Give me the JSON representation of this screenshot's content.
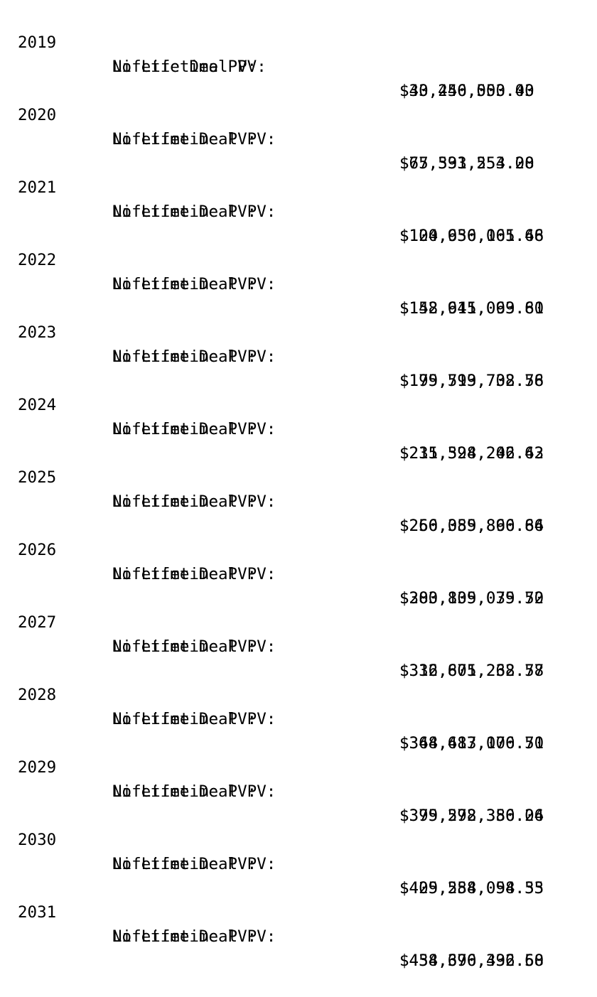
{
  "rows": [
    {
      "year": "2019",
      "no_lifetime_label": "No Lifetime PV:",
      "no_lifetime_value": "$33,250,000.00",
      "lifetime_label": "Lifetie Deal PV:",
      "lifetime_value": "$40,446,553.43"
    },
    {
      "year": "2020",
      "no_lifetime_label": "No Lifetime PV:",
      "no_lifetime_value": "$65,531,553.00",
      "lifetime_label": "Lifetime Deal PV:",
      "lifetime_value": "$77,393,254.28"
    },
    {
      "year": "2021",
      "no_lifetime_label": "No Lifetime PV:",
      "no_lifetime_value": "$104,656,101.48",
      "lifetime_label": "Lifetime Deal PV:",
      "lifetime_value": "$120,930,065.66"
    },
    {
      "year": "2022",
      "no_lifetime_label": "No Lifetime PV:",
      "no_lifetime_value": "$142,641,099.61",
      "lifetime_label": "Lifetime Deal PV:",
      "lifetime_value": "$158,915,063.80"
    },
    {
      "year": "2023",
      "no_lifetime_label": "No Lifetime PV:",
      "no_lifetime_value": "$179,519,738.58",
      "lifetime_label": "Lifetime Deal PV:",
      "lifetime_value": "$195,793,702.76"
    },
    {
      "year": "2024",
      "no_lifetime_label": "No Lifetime PV:",
      "no_lifetime_value": "$215,324,242.43",
      "lifetime_label": "Lifetime Deal PV:",
      "lifetime_value": "$231,598,206.62"
    },
    {
      "year": "2025",
      "no_lifetime_label": "No Lifetime PV:",
      "no_lifetime_value": "$250,085,896.66",
      "lifetime_label": "Lifetime Deal PV:",
      "lifetime_value": "$266,359,860.84"
    },
    {
      "year": "2026",
      "no_lifetime_label": "No Lifetime PV:",
      "no_lifetime_value": "$283,835,075.52",
      "lifetime_label": "Lifetime Deal PV:",
      "lifetime_value": "$300,109,039.70"
    },
    {
      "year": "2027",
      "no_lifetime_label": "No Lifetime PV:",
      "no_lifetime_value": "$316,601,268.58",
      "lifetime_label": "Lifetime Deal PV:",
      "lifetime_value": "$332,875,232.77"
    },
    {
      "year": "2028",
      "no_lifetime_label": "No Lifetime PV:",
      "no_lifetime_value": "$348,413,106.51",
      "lifetime_label": "Lifetime Deal PV:",
      "lifetime_value": "$364,687,070.70"
    },
    {
      "year": "2029",
      "no_lifetime_label": "No Lifetime PV:",
      "no_lifetime_value": "$379,298,386.06",
      "lifetime_label": "Lifetime Deal PV:",
      "lifetime_value": "$395,572,350.24"
    },
    {
      "year": "2030",
      "no_lifetime_label": "No Lifetime PV:",
      "no_lifetime_value": "$409,284,094.35",
      "lifetime_label": "Lifetime Deal PV:",
      "lifetime_value": "$425,558,058.53"
    },
    {
      "year": "2031",
      "no_lifetime_label": "No Lifetime PV:",
      "no_lifetime_value": "$438,396,432.50",
      "lifetime_label": "Lifetime Deal PV:",
      "lifetime_value": "$454,670,396.68"
    }
  ]
}
